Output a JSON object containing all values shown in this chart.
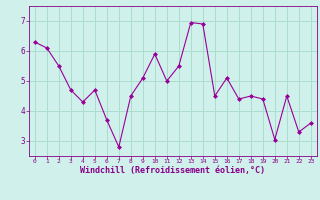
{
  "x": [
    0,
    1,
    2,
    3,
    4,
    5,
    6,
    7,
    8,
    9,
    10,
    11,
    12,
    13,
    14,
    15,
    16,
    17,
    18,
    19,
    20,
    21,
    22,
    23
  ],
  "y": [
    6.3,
    6.1,
    5.5,
    4.7,
    4.3,
    4.7,
    3.7,
    2.8,
    4.5,
    5.1,
    5.9,
    5.0,
    5.5,
    6.95,
    6.9,
    4.5,
    5.1,
    4.4,
    4.5,
    4.4,
    3.05,
    4.5,
    3.3,
    3.6
  ],
  "line_color": "#990099",
  "marker": "D",
  "marker_size": 2.0,
  "bg_color": "#cff0eb",
  "grid_color": "#aaddcc",
  "xlabel": "Windchill (Refroidissement éolien,°C)",
  "xlabel_color": "#880088",
  "tick_color": "#880088",
  "xlim": [
    -0.5,
    23.5
  ],
  "ylim": [
    2.5,
    7.5
  ],
  "yticks": [
    3,
    4,
    5,
    6,
    7
  ],
  "xticks": [
    0,
    1,
    2,
    3,
    4,
    5,
    6,
    7,
    8,
    9,
    10,
    11,
    12,
    13,
    14,
    15,
    16,
    17,
    18,
    19,
    20,
    21,
    22,
    23
  ]
}
